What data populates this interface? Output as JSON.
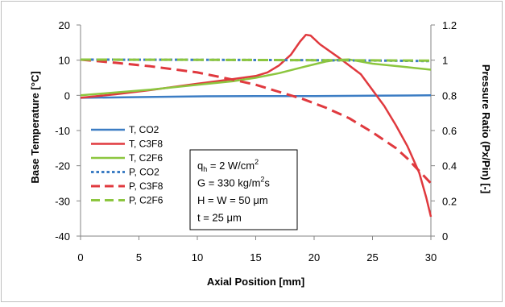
{
  "chart_data": {
    "type": "line",
    "title": "",
    "xlabel": "Axial Position [mm]",
    "ylabel_left": "Base Temperature [°C]",
    "ylabel_right": "Pressure Ratio (Px/Pin) [-]",
    "xlim": [
      0,
      30
    ],
    "ylim_left": [
      -40,
      20
    ],
    "ylim_right": [
      0,
      1.2
    ],
    "x_ticks": [
      0,
      5,
      10,
      15,
      20,
      25,
      30
    ],
    "x_tick_labels": [
      "0",
      "5",
      "10",
      "15",
      "20",
      "25",
      "30"
    ],
    "y_left_ticks": [
      20,
      10,
      0,
      -10,
      -20,
      -30,
      -40
    ],
    "y_left_tick_labels": [
      "20",
      "10",
      "0",
      "-10",
      "-20",
      "-30",
      "-40"
    ],
    "y_right_ticks": [
      1.2,
      1.0,
      0.8,
      0.6,
      0.4,
      0.2,
      0
    ],
    "y_right_tick_labels": [
      "1.2",
      "1",
      "0.8",
      "0.6",
      "0.4",
      "0.2",
      "0"
    ],
    "grid": false,
    "legend_position": "left",
    "series": [
      {
        "name": "T, CO2",
        "axis": "left",
        "color": "#3c7dc4",
        "dash": "solid",
        "points": [
          [
            0,
            -0.7
          ],
          [
            5,
            -0.5
          ],
          [
            10,
            -0.3
          ],
          [
            15,
            -0.2
          ],
          [
            20,
            -0.2
          ],
          [
            25,
            -0.1
          ],
          [
            30,
            0
          ]
        ]
      },
      {
        "name": "T, C3F8",
        "axis": "left",
        "color": "#e0393e",
        "dash": "solid",
        "points": [
          [
            0,
            -0.7
          ],
          [
            3,
            0.3
          ],
          [
            6,
            1.5
          ],
          [
            10,
            3.3
          ],
          [
            13,
            4.6
          ],
          [
            15,
            5.5
          ],
          [
            16,
            6.5
          ],
          [
            17,
            8.5
          ],
          [
            18,
            11.5
          ],
          [
            18.8,
            15.3
          ],
          [
            19.3,
            17.2
          ],
          [
            19.7,
            17
          ],
          [
            20.5,
            14.5
          ],
          [
            22,
            11
          ],
          [
            24,
            6
          ],
          [
            25,
            1.5
          ],
          [
            26,
            -3
          ],
          [
            27,
            -8.5
          ],
          [
            28,
            -14.5
          ],
          [
            29,
            -22
          ],
          [
            29.6,
            -29
          ],
          [
            30,
            -34.5
          ]
        ]
      },
      {
        "name": "T, C2F6",
        "axis": "left",
        "color": "#8cc63f",
        "dash": "solid",
        "points": [
          [
            0,
            0
          ],
          [
            3,
            0.8
          ],
          [
            6,
            1.6
          ],
          [
            10,
            3
          ],
          [
            13,
            4
          ],
          [
            15,
            5
          ],
          [
            17,
            6.3
          ],
          [
            19,
            8
          ],
          [
            21,
            9.6
          ],
          [
            22,
            10.1
          ],
          [
            23,
            10.2
          ],
          [
            25,
            9
          ],
          [
            28,
            8
          ],
          [
            30,
            7.3
          ]
        ]
      },
      {
        "name": "P, CO2",
        "axis": "right",
        "color": "#3c7dc4",
        "dash": "dotted",
        "points": [
          [
            0,
            1.003
          ],
          [
            10,
            1.002
          ],
          [
            20,
            1.0
          ],
          [
            25,
            0.998
          ],
          [
            30,
            0.995
          ]
        ]
      },
      {
        "name": "P, C3F8",
        "axis": "right",
        "color": "#e0393e",
        "dash": "dashed",
        "points": [
          [
            0,
            1.003
          ],
          [
            3,
            0.985
          ],
          [
            6,
            0.965
          ],
          [
            10,
            0.93
          ],
          [
            13,
            0.89
          ],
          [
            15,
            0.86
          ],
          [
            17,
            0.82
          ],
          [
            19,
            0.78
          ],
          [
            21,
            0.73
          ],
          [
            23,
            0.67
          ],
          [
            25,
            0.59
          ],
          [
            27,
            0.5
          ],
          [
            28,
            0.44
          ],
          [
            29,
            0.37
          ],
          [
            30,
            0.3
          ]
        ]
      },
      {
        "name": "P, C2F6",
        "axis": "right",
        "color": "#8cc63f",
        "dash": "dashed",
        "points": [
          [
            0,
            1.003
          ],
          [
            10,
            1.002
          ],
          [
            20,
            1.0
          ],
          [
            25,
            0.999
          ],
          [
            30,
            0.997
          ]
        ]
      }
    ],
    "annotation": {
      "lines": [
        {
          "pre": "q",
          "sub": "h",
          "post": " = 2 W/cm",
          "sup": "2"
        },
        {
          "pre": "G = 330 kg/m",
          "sup": "2",
          "post": "s"
        },
        {
          "pre": "H = W = 50 μm"
        },
        {
          "pre": "t = 25 μm"
        }
      ]
    }
  }
}
